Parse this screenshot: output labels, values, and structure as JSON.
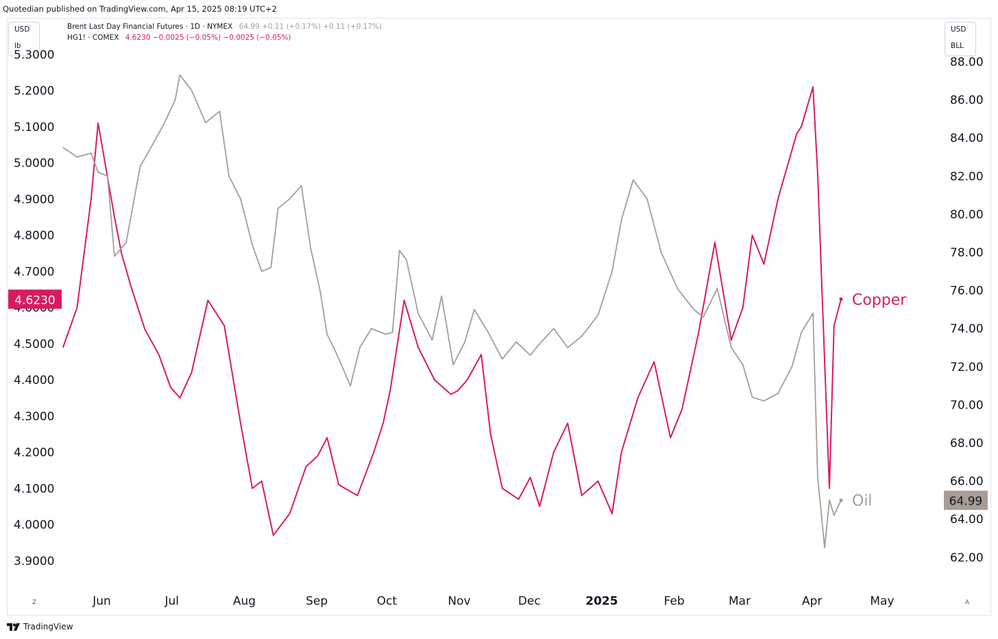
{
  "publisher": "Quotedian published on TradingView.com, Apr 15, 2025 08:19 UTC+2",
  "left_scale_box": {
    "currency": "USD",
    "unit": "lb"
  },
  "right_scale_box": {
    "currency": "USD",
    "unit": "BLL"
  },
  "legend": [
    {
      "symbol": "Brent Last Day Financial Futures · 1D · NYMEX",
      "values": "64.99  +0.11 (+0.17%)  +0.11 (+0.17%)",
      "color": "#a69d94"
    },
    {
      "symbol": "HG1! · COMEX",
      "values": "4.6230  −0.0025 (−0.05%)  −0.0025 (−0.05%)",
      "color": "#d81b60"
    }
  ],
  "footer_brand": "TradingView",
  "corner_left": "Z",
  "corner_right": "A",
  "chart_data": {
    "type": "line",
    "left_axis": {
      "ticks": [
        "5.3000",
        "5.2000",
        "5.1000",
        "5.0000",
        "4.9000",
        "4.8000",
        "4.7000",
        "4.6000",
        "4.5000",
        "4.4000",
        "4.3000",
        "4.2000",
        "4.1000",
        "4.0000",
        "3.9000"
      ],
      "ylim": [
        3.9,
        5.3
      ]
    },
    "right_axis": {
      "ticks": [
        "88.00",
        "86.00",
        "84.00",
        "82.00",
        "80.00",
        "78.00",
        "76.00",
        "74.00",
        "72.00",
        "70.00",
        "68.00",
        "66.00",
        "64.00",
        "62.00"
      ],
      "ylim": [
        62,
        88
      ]
    },
    "x_labels": [
      "Jun",
      "Jul",
      "Aug",
      "Sep",
      "Oct",
      "Nov",
      "Dec",
      "2025",
      "Feb",
      "Mar",
      "Apr",
      "May"
    ],
    "last_value_labels": {
      "left": "4.6230",
      "right": "64.99"
    },
    "series": [
      {
        "name": "Copper",
        "axis": "left",
        "color": "#d81b60",
        "x": [
          "2024-05-16",
          "2024-05-22",
          "2024-05-28",
          "2024-05-31",
          "2024-06-07",
          "2024-06-10",
          "2024-06-14",
          "2024-06-20",
          "2024-06-26",
          "2024-07-01",
          "2024-07-05",
          "2024-07-10",
          "2024-07-17",
          "2024-07-24",
          "2024-07-31",
          "2024-08-05",
          "2024-08-09",
          "2024-08-14",
          "2024-08-21",
          "2024-08-28",
          "2024-09-02",
          "2024-09-06",
          "2024-09-11",
          "2024-09-19",
          "2024-09-26",
          "2024-09-30",
          "2024-10-03",
          "2024-10-09",
          "2024-10-15",
          "2024-10-22",
          "2024-10-29",
          "2024-11-01",
          "2024-11-05",
          "2024-11-11",
          "2024-11-15",
          "2024-11-20",
          "2024-11-27",
          "2024-12-02",
          "2024-12-06",
          "2024-12-12",
          "2024-12-18",
          "2024-12-24",
          "2024-12-31",
          "2025-01-06",
          "2025-01-10",
          "2025-01-17",
          "2025-01-24",
          "2025-01-31",
          "2025-02-05",
          "2025-02-12",
          "2025-02-19",
          "2025-02-26",
          "2025-03-03",
          "2025-03-07",
          "2025-03-12",
          "2025-03-18",
          "2025-03-26",
          "2025-03-28",
          "2025-04-02",
          "2025-04-04",
          "2025-04-07",
          "2025-04-09",
          "2025-04-11",
          "2025-04-14"
        ],
        "y": [
          4.49,
          4.6,
          4.9,
          5.11,
          4.85,
          4.75,
          4.66,
          4.54,
          4.47,
          4.38,
          4.35,
          4.42,
          4.62,
          4.55,
          4.28,
          4.1,
          4.12,
          3.97,
          4.03,
          4.16,
          4.19,
          4.24,
          4.11,
          4.08,
          4.2,
          4.28,
          4.37,
          4.62,
          4.49,
          4.4,
          4.36,
          4.37,
          4.4,
          4.47,
          4.25,
          4.1,
          4.07,
          4.13,
          4.05,
          4.2,
          4.28,
          4.08,
          4.12,
          4.03,
          4.2,
          4.35,
          4.45,
          4.24,
          4.32,
          4.53,
          4.78,
          4.51,
          4.6,
          4.8,
          4.72,
          4.9,
          5.08,
          5.1,
          5.21,
          4.97,
          4.45,
          4.1,
          4.55,
          4.623
        ]
      },
      {
        "name": "Oil",
        "axis": "right",
        "color": "#a69d94",
        "x": [
          "2024-05-16",
          "2024-05-22",
          "2024-05-28",
          "2024-05-31",
          "2024-06-04",
          "2024-06-07",
          "2024-06-12",
          "2024-06-18",
          "2024-06-24",
          "2024-06-28",
          "2024-07-03",
          "2024-07-05",
          "2024-07-10",
          "2024-07-16",
          "2024-07-22",
          "2024-07-26",
          "2024-07-31",
          "2024-08-05",
          "2024-08-09",
          "2024-08-13",
          "2024-08-16",
          "2024-08-21",
          "2024-08-26",
          "2024-08-30",
          "2024-09-03",
          "2024-09-06",
          "2024-09-10",
          "2024-09-16",
          "2024-09-20",
          "2024-09-25",
          "2024-10-01",
          "2024-10-04",
          "2024-10-07",
          "2024-10-10",
          "2024-10-15",
          "2024-10-21",
          "2024-10-25",
          "2024-10-30",
          "2024-11-04",
          "2024-11-08",
          "2024-11-14",
          "2024-11-20",
          "2024-11-26",
          "2024-12-02",
          "2024-12-06",
          "2024-12-12",
          "2024-12-18",
          "2024-12-24",
          "2024-12-31",
          "2025-01-06",
          "2025-01-10",
          "2025-01-15",
          "2025-01-21",
          "2025-01-27",
          "2025-02-03",
          "2025-02-10",
          "2025-02-14",
          "2025-02-20",
          "2025-02-26",
          "2025-03-03",
          "2025-03-07",
          "2025-03-12",
          "2025-03-18",
          "2025-03-24",
          "2025-03-28",
          "2025-04-02",
          "2025-04-04",
          "2025-04-07",
          "2025-04-09",
          "2025-04-11",
          "2025-04-14"
        ],
        "y": [
          83.5,
          83.0,
          83.2,
          82.2,
          82.0,
          77.8,
          78.5,
          82.5,
          83.8,
          84.7,
          86.0,
          87.3,
          86.5,
          84.8,
          85.4,
          82.0,
          80.8,
          78.4,
          77.0,
          77.2,
          80.3,
          80.8,
          81.5,
          78.2,
          76.0,
          73.7,
          72.7,
          71.0,
          73.0,
          74.0,
          73.7,
          73.8,
          78.1,
          77.6,
          74.8,
          73.4,
          75.7,
          72.1,
          73.3,
          75.0,
          73.8,
          72.4,
          73.3,
          72.6,
          73.2,
          74.0,
          73.0,
          73.6,
          74.7,
          77.0,
          79.7,
          81.8,
          80.8,
          78.0,
          76.1,
          75.0,
          74.6,
          76.1,
          73.0,
          72.1,
          70.4,
          70.2,
          70.6,
          72.0,
          73.8,
          74.8,
          66.2,
          62.5,
          65.0,
          64.2,
          64.99
        ]
      }
    ]
  }
}
